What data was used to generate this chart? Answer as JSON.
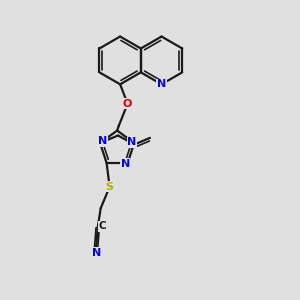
{
  "background_color": "#e0e0e0",
  "bond_color": "#1a1a1a",
  "N_color": "#0000ee",
  "O_color": "#dd0000",
  "S_color": "#bbaa00",
  "C_color": "#1a1a1a",
  "figsize": [
    3.0,
    3.0
  ],
  "dpi": 100,
  "xlim": [
    0,
    10
  ],
  "ylim": [
    0,
    10
  ]
}
